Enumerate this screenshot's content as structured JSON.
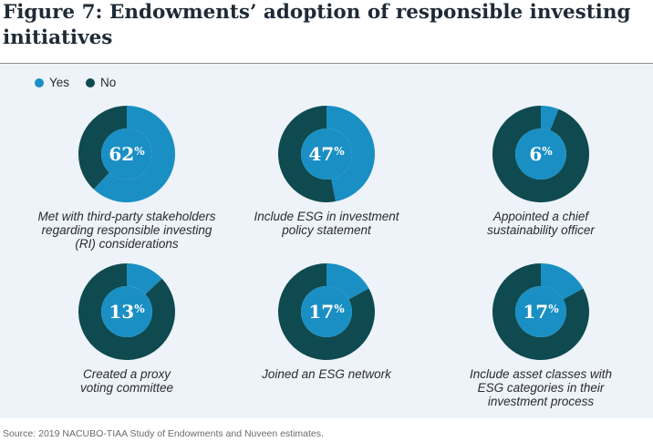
{
  "title": "Figure 7: Endowments’ adoption of responsible investing initiatives",
  "legend": [
    {
      "label": "Yes",
      "color": "#1a8fc4"
    },
    {
      "label": "No",
      "color": "#0e4a4f"
    }
  ],
  "chart_data": {
    "type": "pie",
    "variant": "donut-grid",
    "unit": "%",
    "series": [
      {
        "name": "Yes",
        "color": "#1a8fc4"
      },
      {
        "name": "No",
        "color": "#0e4a4f"
      }
    ],
    "items": [
      {
        "label": "Met with third-party stakeholders\nregarding responsible investing\n(RI) considerations",
        "yes": 62,
        "no": 38
      },
      {
        "label": "Include ESG in investment\npolicy statement",
        "yes": 47,
        "no": 53
      },
      {
        "label": "Appointed a chief\nsustainability officer",
        "yes": 6,
        "no": 94
      },
      {
        "label": "Created a proxy\nvoting committee",
        "yes": 13,
        "no": 87
      },
      {
        "label": "Joined an ESG network",
        "yes": 17,
        "no": 83
      },
      {
        "label": "Include asset classes with\nESG categories in their\ninvestment process",
        "yes": 17,
        "no": 83
      }
    ]
  },
  "source": "Source: 2019 NACUBO-TIAA Study of Endowments and Nuveen estimates."
}
